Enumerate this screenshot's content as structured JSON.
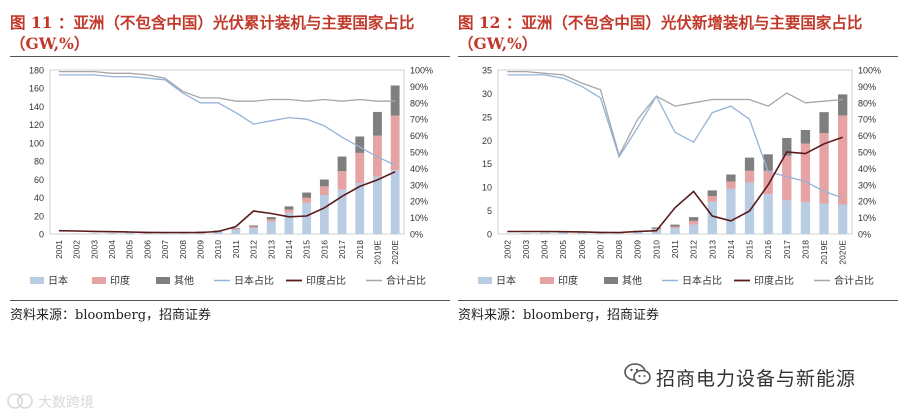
{
  "panels": [
    {
      "title": "图 11 ：亚洲（不包含中国）光伏累计装机与主要国家占比（GW,%）",
      "source": "资料来源：bloomberg，招商证券"
    },
    {
      "title": "图 12 ：亚洲（不包含中国）光伏新增装机与主要国家占比（GW,%）",
      "source": "资料来源：bloomberg，招商证券"
    }
  ],
  "footer": {
    "brand": "招商电力设备与新能源",
    "watermark": "大数跨境"
  },
  "icons": {
    "wechat": "wechat-icon",
    "watermark": "watermark-logo-icon"
  },
  "colors": {
    "japan": "#b8cce4",
    "india": "#e6a3a3",
    "other": "#7f7f7f",
    "japan_share": "#95b3d7",
    "india_share": "#5b1a1a",
    "total_share": "#a6a6a6"
  },
  "chart_data": [
    {
      "type": "bar",
      "stacked": true,
      "categories": [
        "2001",
        "2002",
        "2003",
        "2004",
        "2005",
        "2006",
        "2007",
        "2008",
        "2009",
        "2010",
        "2011",
        "2012",
        "2013",
        "2014",
        "2015",
        "2016",
        "2017",
        "2018",
        "2019E",
        "2020E"
      ],
      "ylim": [
        0,
        180
      ],
      "yticks": [
        0,
        20,
        40,
        60,
        80,
        100,
        120,
        140,
        160,
        180
      ],
      "y2lim": [
        0,
        100
      ],
      "y2ticks": [
        "0%",
        "10%",
        "20%",
        "30%",
        "40%",
        "50%",
        "60%",
        "70%",
        "80%",
        "90%",
        "100%"
      ],
      "series": [
        {
          "name": "日本",
          "kind": "bar",
          "axis": "left",
          "values": [
            0.5,
            0.6,
            0.8,
            1.1,
            1.4,
            1.7,
            1.9,
            2.1,
            2.6,
            3.6,
            4.9,
            6.6,
            13.6,
            23.3,
            34.2,
            42.8,
            49.0,
            56.0,
            63.0,
            70.0
          ]
        },
        {
          "name": "印度",
          "kind": "bar",
          "axis": "left",
          "values": [
            0,
            0,
            0,
            0,
            0,
            0,
            0,
            0,
            0,
            0.1,
            0.5,
            1.5,
            2.5,
            3.5,
            5.5,
            9.5,
            20.0,
            33.0,
            45.0,
            60.0
          ]
        },
        {
          "name": "其他",
          "kind": "bar",
          "axis": "left",
          "values": [
            0,
            0,
            0,
            0,
            0,
            0,
            0,
            0.1,
            0.2,
            0.3,
            0.8,
            1.3,
            2.5,
            3.5,
            5.8,
            7.5,
            16.0,
            18.0,
            26.0,
            33.0
          ]
        },
        {
          "name": "日本占比",
          "kind": "line",
          "axis": "right",
          "values": [
            97,
            97,
            97,
            96,
            96,
            95,
            94,
            86,
            80,
            80,
            74,
            67,
            69,
            71,
            70,
            66,
            59,
            53,
            47,
            42
          ]
        },
        {
          "name": "印度占比",
          "kind": "line",
          "axis": "right",
          "values": [
            2,
            1.8,
            1.6,
            1.4,
            1.2,
            1.0,
            0.9,
            0.9,
            0.9,
            1.5,
            4.5,
            14,
            12.5,
            10.5,
            11,
            16,
            23,
            29,
            33,
            38
          ]
        },
        {
          "name": "合计占比",
          "kind": "line",
          "axis": "right",
          "values": [
            99,
            99,
            99,
            98,
            98,
            97,
            95,
            87,
            83,
            83,
            81,
            81,
            82,
            82,
            81,
            82,
            81,
            82,
            81,
            81
          ]
        }
      ],
      "legend": [
        "日本",
        "印度",
        "其他",
        "日本占比",
        "印度占比",
        "合计占比"
      ],
      "legend_position": "bottom"
    },
    {
      "type": "bar",
      "stacked": true,
      "categories": [
        "2002",
        "2003",
        "2004",
        "2005",
        "2006",
        "2007",
        "2008",
        "2009",
        "2010",
        "2011",
        "2012",
        "2013",
        "2014",
        "2015",
        "2016",
        "2017",
        "2018",
        "2019E",
        "2020E"
      ],
      "ylim": [
        0,
        35
      ],
      "yticks": [
        0,
        5,
        10,
        15,
        20,
        25,
        30,
        35
      ],
      "y2lim": [
        0,
        100
      ],
      "y2ticks": [
        "0%",
        "10%",
        "20%",
        "30%",
        "40%",
        "50%",
        "60%",
        "70%",
        "80%",
        "90%",
        "100%"
      ],
      "series": [
        {
          "name": "日本",
          "kind": "bar",
          "axis": "left",
          "values": [
            0.1,
            0.2,
            0.3,
            0.3,
            0.3,
            0.2,
            0.2,
            0.5,
            1.0,
            1.3,
            2.0,
            6.9,
            9.7,
            11.0,
            8.5,
            7.2,
            6.8,
            6.5,
            6.3
          ]
        },
        {
          "name": "印度",
          "kind": "bar",
          "axis": "left",
          "values": [
            0,
            0,
            0,
            0,
            0,
            0,
            0,
            0,
            0.1,
            0.3,
            0.8,
            1.2,
            1.5,
            2.5,
            5.0,
            9.5,
            12.5,
            15.0,
            19.0
          ]
        },
        {
          "name": "其他",
          "kind": "bar",
          "axis": "left",
          "values": [
            0,
            0,
            0,
            0,
            0,
            0,
            0.1,
            0.2,
            0.3,
            0.4,
            0.8,
            1.2,
            1.5,
            2.8,
            3.5,
            3.8,
            2.9,
            4.5,
            4.5
          ]
        },
        {
          "name": "日本占比",
          "kind": "line",
          "axis": "right",
          "values": [
            97,
            97,
            97,
            95,
            90,
            83,
            47,
            65,
            84,
            62,
            56,
            74,
            78,
            70,
            38,
            35,
            32,
            26,
            22
          ]
        },
        {
          "name": "印度占比",
          "kind": "line",
          "axis": "right",
          "values": [
            1.5,
            1.5,
            1.5,
            1.4,
            1.3,
            1.0,
            0.9,
            1.5,
            2.0,
            16,
            26,
            11,
            8,
            14,
            30,
            50,
            49,
            55,
            59
          ]
        },
        {
          "name": "合计占比",
          "kind": "line",
          "axis": "right",
          "values": [
            99,
            99,
            98,
            97,
            92,
            88,
            48,
            70,
            84,
            78,
            80,
            82,
            82,
            82,
            78,
            86,
            80,
            81,
            82
          ]
        }
      ],
      "legend": [
        "日本",
        "印度",
        "其他",
        "日本占比",
        "印度占比",
        "合计占比"
      ],
      "legend_position": "bottom"
    }
  ]
}
